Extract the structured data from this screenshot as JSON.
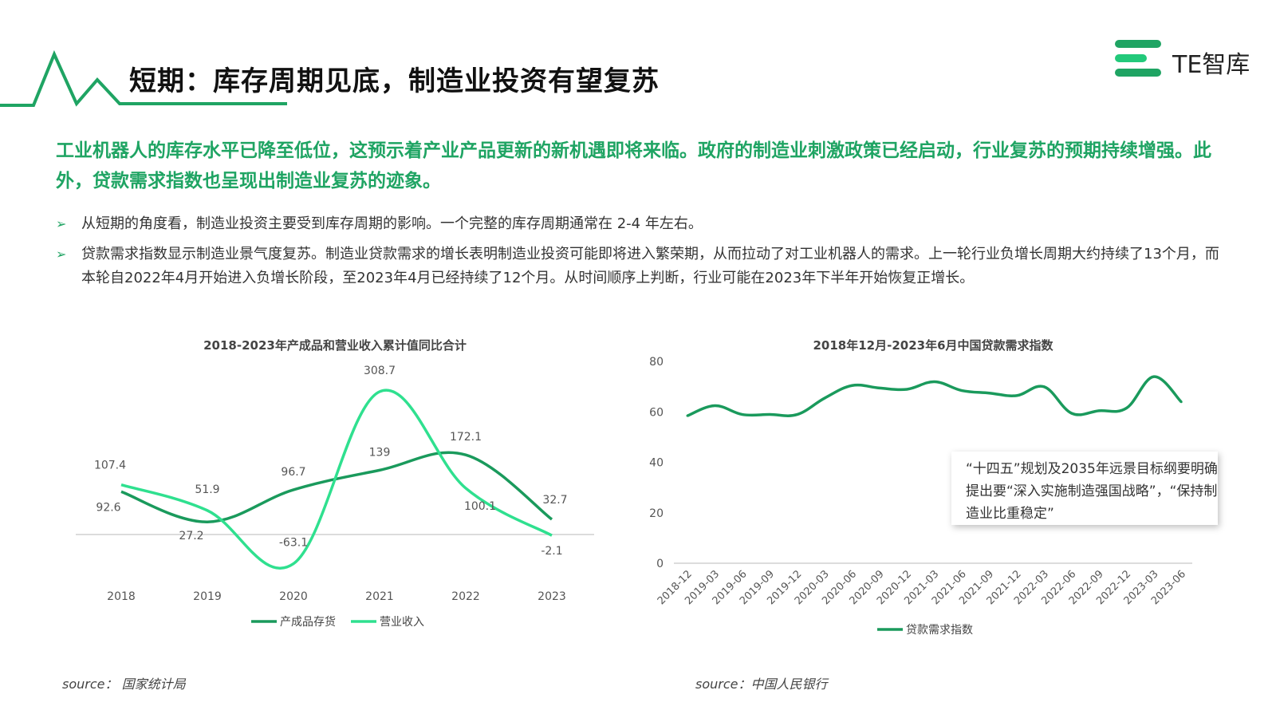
{
  "title": "短期：库存周期见底，制造业投资有望复苏",
  "logo": {
    "text": "TE智库",
    "colors": [
      "#1fa463",
      "#22c97a"
    ]
  },
  "lead": "工业机器人的库存水平已降至低位，这预示着产业产品更新的新机遇即将来临。政府的制造业刺激政策已经启动，行业复苏的预期持续增强。此外，贷款需求指数也呈现出制造业复苏的迹象。",
  "bullets": [
    "从短期的角度看，制造业投资主要受到库存周期的影响。一个完整的库存周期通常在 2-4 年左右。",
    "贷款需求指数显示制造业景气度复苏。制造业贷款需求的增长表明制造业投资可能即将进入繁荣期，从而拉动了对工业机器人的需求。上一轮行业负增长周期大约持续了13个月，而本轮自2022年4月开始进入负增长阶段，至2023年4月已经持续了12个月。从时间顺序上判断，行业可能在2023年下半年开始恢复正增长。"
  ],
  "colors": {
    "dark_green": "#1a9a5c",
    "light_green": "#2fe08f",
    "accent": "#1fa463"
  },
  "chart_data": [
    {
      "type": "line",
      "title": "2018-2023年产成品和营业收入累计值同比合计",
      "categories": [
        "2018",
        "2019",
        "2020",
        "2021",
        "2022",
        "2023"
      ],
      "series": [
        {
          "name": "产成品存货",
          "values": [
            92.6,
            27.2,
            96.7,
            139,
            172.1,
            32.7
          ]
        },
        {
          "name": "营业收入",
          "values": [
            107.4,
            51.9,
            -63.1,
            308.7,
            100.1,
            -2.1
          ]
        }
      ],
      "legend": "bottom",
      "source": "source： 国家统计局"
    },
    {
      "type": "line",
      "title": "2018年12月-2023年6月中国贷款需求指数",
      "categories": [
        "2018-12",
        "2019-03",
        "2019-06",
        "2019-09",
        "2019-12",
        "2020-03",
        "2020-06",
        "2020-09",
        "2020-12",
        "2021-03",
        "2021-06",
        "2021-09",
        "2021-12",
        "2022-03",
        "2022-06",
        "2022-09",
        "2022-12",
        "2023-03",
        "2023-06"
      ],
      "series": [
        {
          "name": "贷款需求指数",
          "values": [
            58.5,
            62.5,
            59,
            59,
            59,
            65.5,
            70.5,
            69.5,
            69,
            72,
            68.5,
            67.5,
            66.5,
            70,
            59.5,
            60.5,
            61.5,
            74,
            64
          ]
        }
      ],
      "ylim": [
        0,
        80
      ],
      "yticks": [
        0,
        20,
        40,
        60,
        80
      ],
      "legend": "bottom",
      "annotation": "“十四五”规划及2035年远景目标纲要明确提出要“深入实施制造强国战略”，“保持制造业比重稳定”",
      "source": "source：中国人民银行"
    }
  ]
}
